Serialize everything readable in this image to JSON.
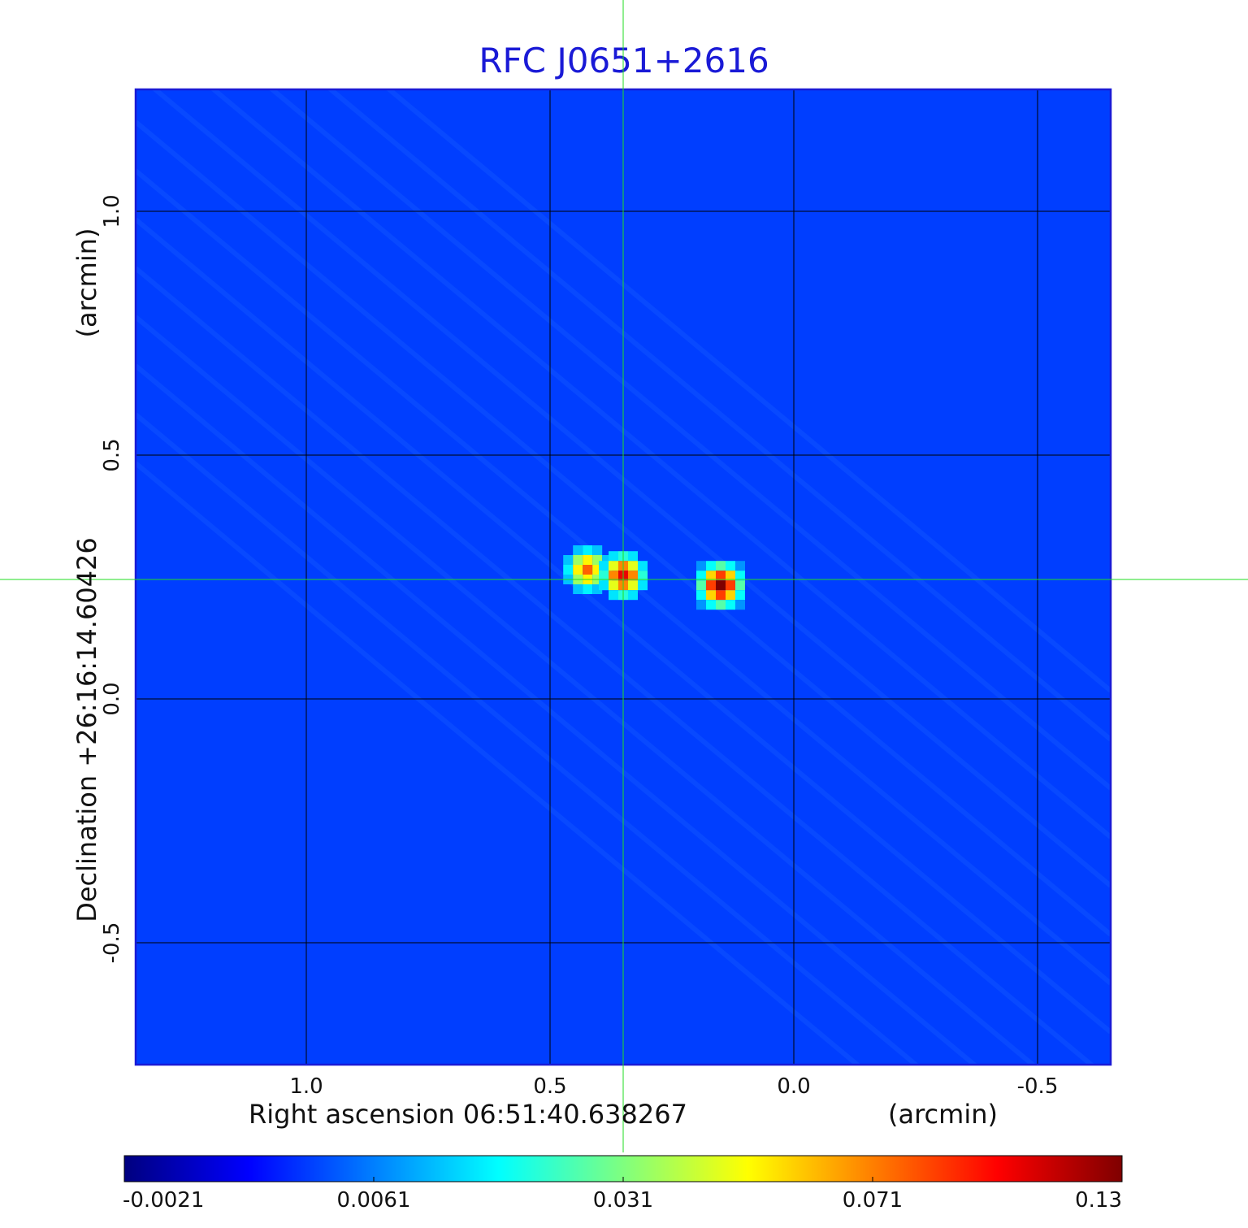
{
  "chart_data": {
    "type": "heatmap",
    "title": "RFC J0651+2616",
    "title_color": "#1a1ad6",
    "xlabel": "Right ascension  06:51:40.638267",
    "x_unit": "(arcmin)",
    "ylabel": "Declination  +26:16:14.60426",
    "y_unit": "(arcmin)",
    "xlim": [
      1.35,
      -0.65
    ],
    "ylim": [
      -0.75,
      1.25
    ],
    "x_ticks": [
      {
        "value": 1.0,
        "label": "1.0"
      },
      {
        "value": 0.5,
        "label": "0.5"
      },
      {
        "value": 0.0,
        "label": "0.0"
      },
      {
        "value": -0.5,
        "label": "-0.5"
      }
    ],
    "y_ticks": [
      {
        "value": 1.0,
        "label": "1.0"
      },
      {
        "value": 0.5,
        "label": "0.5"
      },
      {
        "value": 0.0,
        "label": "0.0"
      },
      {
        "value": -0.5,
        "label": "-0.5"
      }
    ],
    "grid": true,
    "grid_color": "#000000",
    "crosshair": {
      "x": 0.35,
      "y": 0.245,
      "color": "#22dd22"
    },
    "background_value": 0.004,
    "components": [
      {
        "x": 0.423,
        "y": 0.265,
        "peak": 0.078
      },
      {
        "x": 0.35,
        "y": 0.253,
        "peak": 0.105
      },
      {
        "x": 0.15,
        "y": 0.233,
        "peak": 0.13
      }
    ],
    "colorbar": {
      "colormap": "jet",
      "colors": [
        "#00007f",
        "#0000ff",
        "#007fff",
        "#00ffff",
        "#7fff7f",
        "#ffff00",
        "#ff7f00",
        "#ff0000",
        "#7f0000"
      ],
      "ticks": [
        {
          "value": -0.0021,
          "label": "-0.0021",
          "position": 0.0
        },
        {
          "value": 0.0061,
          "label": "0.0061",
          "position": 0.25
        },
        {
          "value": 0.031,
          "label": "0.031",
          "position": 0.5
        },
        {
          "value": 0.071,
          "label": "0.071",
          "position": 0.75
        },
        {
          "value": 0.13,
          "label": "0.13",
          "position": 1.0
        }
      ]
    },
    "axes_frame_color": "#1a1ad6"
  }
}
